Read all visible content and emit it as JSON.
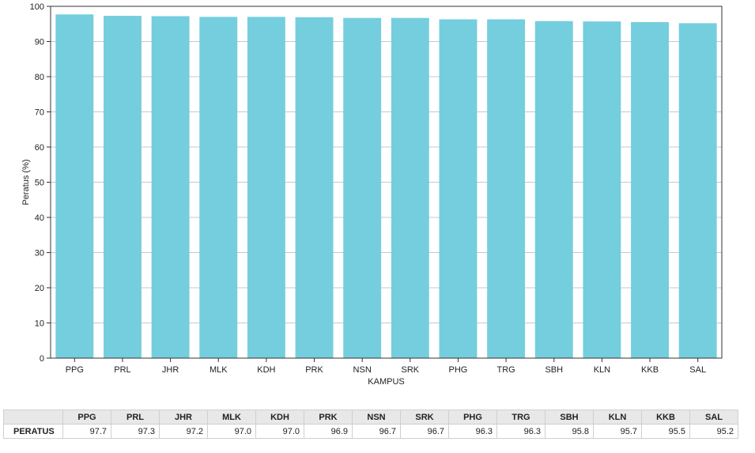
{
  "chart_data": {
    "type": "bar",
    "categories": [
      "PPG",
      "PRL",
      "JHR",
      "MLK",
      "KDH",
      "PRK",
      "NSN",
      "SRK",
      "PHG",
      "TRG",
      "SBH",
      "KLN",
      "KKB",
      "SAL"
    ],
    "values": [
      97.7,
      97.3,
      97.2,
      97.0,
      97.0,
      96.9,
      96.7,
      96.7,
      96.3,
      96.3,
      95.8,
      95.7,
      95.5,
      95.2
    ],
    "xlabel": "KAMPUS",
    "ylabel": "Peratus (%)",
    "ylim": [
      0,
      100
    ],
    "yticks": [
      0,
      10,
      20,
      30,
      40,
      50,
      60,
      70,
      80,
      90,
      100
    ],
    "bar_color": "#74cede",
    "grid": true
  },
  "table": {
    "row_label": "PERATUS",
    "values_display": [
      "97.7",
      "97.3",
      "97.2",
      "97.0",
      "97.0",
      "96.9",
      "96.7",
      "96.7",
      "96.3",
      "96.3",
      "95.8",
      "95.7",
      "95.5",
      "95.2"
    ]
  }
}
